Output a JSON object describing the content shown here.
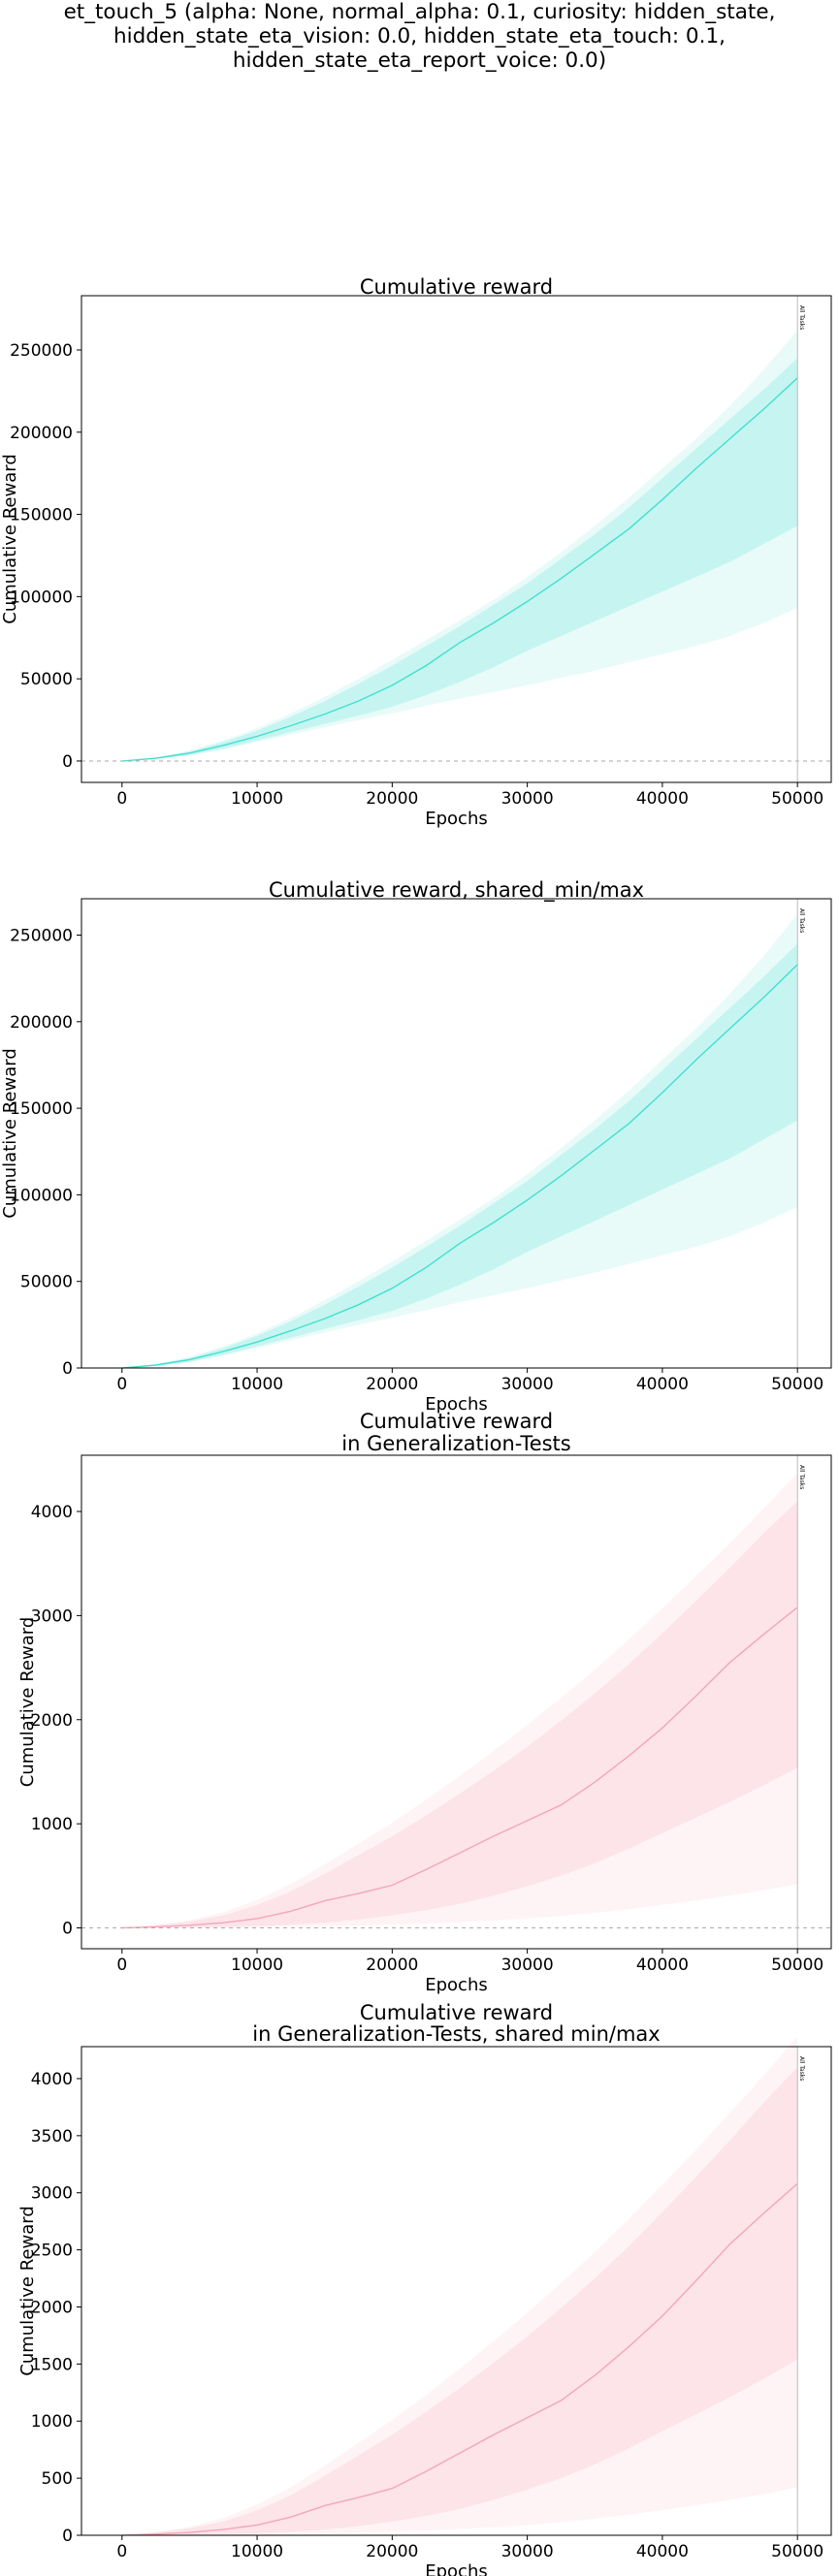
{
  "figure": {
    "suptitle_lines": [
      "et_touch_5 (alpha: None, normal_alpha: 0.1, curiosity: hidden_state,",
      "hidden_state_eta_vision: 0.0, hidden_state_eta_touch: 0.1,",
      "hidden_state_eta_report_voice: 0.0)"
    ]
  },
  "chart_data": [
    {
      "type": "line",
      "title": [
        "Cumulative reward"
      ],
      "xlabel": "Epochs",
      "ylabel": "Cumulative Reward",
      "xlim": [
        -3000,
        52500
      ],
      "ylim": [
        -13000,
        283000
      ],
      "xticks": [
        0,
        10000,
        20000,
        30000,
        40000,
        50000
      ],
      "yticks": [
        0,
        50000,
        100000,
        150000,
        200000,
        250000
      ],
      "zero_line": true,
      "vline": {
        "x": 50000,
        "label": "All Tasks"
      },
      "color": "#40E0D0",
      "series": [
        {
          "x": [
            0,
            2500,
            5000,
            7500,
            10000,
            12500,
            15000,
            17500,
            20000,
            22500,
            25000,
            27500,
            30000,
            32500,
            35000,
            37500,
            40000,
            42500,
            45000,
            47500,
            50000
          ],
          "mean": [
            0,
            1700,
            4800,
            9500,
            15000,
            21500,
            28500,
            36500,
            46000,
            58000,
            72000,
            84000,
            97000,
            111000,
            126000,
            141000,
            159000,
            178000,
            196000,
            214000,
            233000
          ],
          "std_low": [
            0,
            1200,
            3600,
            7600,
            12500,
            17500,
            22500,
            27500,
            33000,
            40000,
            48000,
            57000,
            67000,
            76000,
            85000,
            94000,
            103000,
            112000,
            121000,
            132000,
            143000
          ],
          "std_high": [
            0,
            2000,
            5800,
            11500,
            18500,
            27000,
            36500,
            47000,
            58000,
            70000,
            82000,
            95000,
            108000,
            123000,
            138000,
            154000,
            172000,
            190000,
            208000,
            226000,
            245000
          ],
          "min": [
            0,
            1000,
            3200,
            7000,
            11500,
            16000,
            20500,
            25000,
            29000,
            33500,
            38000,
            42000,
            46000,
            50500,
            55000,
            60000,
            65000,
            70000,
            76000,
            84000,
            93000
          ],
          "max": [
            0,
            2200,
            6500,
            12500,
            20000,
            29000,
            39000,
            50000,
            61500,
            73500,
            85500,
            98000,
            112000,
            127000,
            143000,
            160000,
            178000,
            196000,
            216000,
            238000,
            262000
          ]
        }
      ]
    },
    {
      "type": "line",
      "title": [
        "Cumulative reward, shared_min/max"
      ],
      "xlabel": "Epochs",
      "ylabel": "Cumulative Reward",
      "xlim": [
        -3000,
        52500
      ],
      "ylim": [
        0,
        271000
      ],
      "xticks": [
        0,
        10000,
        20000,
        30000,
        40000,
        50000
      ],
      "yticks": [
        0,
        50000,
        100000,
        150000,
        200000,
        250000
      ],
      "zero_line": false,
      "vline": {
        "x": 50000,
        "label": "All Tasks"
      },
      "color": "#40E0D0",
      "series": [
        {
          "x": [
            0,
            2500,
            5000,
            7500,
            10000,
            12500,
            15000,
            17500,
            20000,
            22500,
            25000,
            27500,
            30000,
            32500,
            35000,
            37500,
            40000,
            42500,
            45000,
            47500,
            50000
          ],
          "mean": [
            0,
            1700,
            4800,
            9500,
            15000,
            21500,
            28500,
            36500,
            46000,
            58000,
            72000,
            84000,
            97000,
            111000,
            126000,
            141000,
            159000,
            178000,
            196000,
            214000,
            233000
          ],
          "std_low": [
            0,
            1200,
            3600,
            7600,
            12500,
            17500,
            22500,
            27500,
            33000,
            40000,
            48000,
            57000,
            67000,
            76000,
            85000,
            94000,
            103000,
            112000,
            121000,
            132000,
            143000
          ],
          "std_high": [
            0,
            2000,
            5800,
            11500,
            18500,
            27000,
            36500,
            47000,
            58000,
            70000,
            82000,
            95000,
            108000,
            123000,
            138000,
            154000,
            172000,
            190000,
            208000,
            226000,
            245000
          ],
          "min": [
            0,
            1000,
            3200,
            7000,
            11500,
            16000,
            20500,
            25000,
            29000,
            33500,
            38000,
            42000,
            46000,
            50500,
            55000,
            60000,
            65000,
            70000,
            76000,
            84000,
            93000
          ],
          "max": [
            0,
            2200,
            6500,
            12500,
            20000,
            29000,
            39000,
            50000,
            61500,
            73500,
            85500,
            98000,
            112000,
            127000,
            143000,
            160000,
            178000,
            196000,
            216000,
            238000,
            262000
          ]
        }
      ]
    },
    {
      "type": "line",
      "title": [
        "Cumulative reward",
        "in Generalization-Tests"
      ],
      "xlabel": "Epochs",
      "ylabel": "Cumulative Reward",
      "xlim": [
        -3000,
        52500
      ],
      "ylim": [
        -200,
        4540
      ],
      "xticks": [
        0,
        10000,
        20000,
        30000,
        40000,
        50000
      ],
      "yticks": [
        0,
        1000,
        2000,
        3000,
        4000
      ],
      "zero_line": true,
      "vline": {
        "x": 50000,
        "label": "All Tasks"
      },
      "color": "#F4A6B8",
      "series": [
        {
          "x": [
            0,
            2500,
            5000,
            7500,
            10000,
            12500,
            15000,
            17500,
            20000,
            22500,
            25000,
            27500,
            30000,
            32500,
            35000,
            37500,
            40000,
            42500,
            45000,
            47500,
            50000
          ],
          "mean": [
            0,
            10,
            25,
            50,
            90,
            160,
            260,
            330,
            410,
            560,
            720,
            880,
            1030,
            1180,
            1400,
            1650,
            1920,
            2230,
            2550,
            2820,
            3080
          ],
          "std_low": [
            0,
            2,
            5,
            10,
            18,
            30,
            50,
            80,
            120,
            170,
            230,
            310,
            400,
            500,
            620,
            760,
            910,
            1060,
            1210,
            1370,
            1540
          ],
          "std_high": [
            0,
            25,
            60,
            120,
            220,
            350,
            520,
            700,
            880,
            1080,
            1290,
            1510,
            1740,
            1990,
            2250,
            2530,
            2830,
            3140,
            3460,
            3790,
            4100
          ],
          "min": [
            0,
            0,
            1,
            2,
            5,
            10,
            15,
            22,
            30,
            40,
            55,
            70,
            90,
            115,
            145,
            180,
            220,
            265,
            310,
            360,
            420
          ],
          "max": [
            0,
            30,
            75,
            150,
            270,
            420,
            610,
            810,
            1010,
            1230,
            1460,
            1700,
            1950,
            2210,
            2480,
            2770,
            3070,
            3380,
            3700,
            4030,
            4370
          ]
        }
      ]
    },
    {
      "type": "line",
      "title": [
        "Cumulative reward",
        "in Generalization-Tests, shared min/max"
      ],
      "xlabel": "Epochs",
      "ylabel": "Cumulative Reward",
      "xlim": [
        -3000,
        52500
      ],
      "ylim": [
        0,
        4280
      ],
      "xticks": [
        0,
        10000,
        20000,
        30000,
        40000,
        50000
      ],
      "yticks": [
        0,
        500,
        1000,
        1500,
        2000,
        2500,
        3000,
        3500,
        4000
      ],
      "zero_line": false,
      "vline": {
        "x": 50000,
        "label": "All Tasks"
      },
      "color": "#F4A6B8",
      "series": [
        {
          "x": [
            0,
            2500,
            5000,
            7500,
            10000,
            12500,
            15000,
            17500,
            20000,
            22500,
            25000,
            27500,
            30000,
            32500,
            35000,
            37500,
            40000,
            42500,
            45000,
            47500,
            50000
          ],
          "mean": [
            0,
            10,
            25,
            50,
            90,
            160,
            260,
            330,
            410,
            560,
            720,
            880,
            1030,
            1180,
            1400,
            1650,
            1920,
            2230,
            2550,
            2820,
            3080
          ],
          "std_low": [
            0,
            2,
            5,
            10,
            18,
            30,
            50,
            80,
            120,
            170,
            230,
            310,
            400,
            500,
            620,
            760,
            910,
            1060,
            1210,
            1370,
            1540
          ],
          "std_high": [
            0,
            25,
            60,
            120,
            220,
            350,
            520,
            700,
            880,
            1080,
            1290,
            1510,
            1740,
            1990,
            2250,
            2530,
            2830,
            3140,
            3460,
            3790,
            4100
          ],
          "min": [
            0,
            0,
            1,
            2,
            5,
            10,
            15,
            22,
            30,
            40,
            55,
            70,
            90,
            115,
            145,
            180,
            220,
            265,
            310,
            360,
            420
          ],
          "max": [
            0,
            30,
            75,
            150,
            270,
            420,
            610,
            810,
            1010,
            1230,
            1460,
            1700,
            1950,
            2210,
            2480,
            2770,
            3070,
            3380,
            3700,
            4030,
            4370
          ]
        }
      ]
    }
  ]
}
